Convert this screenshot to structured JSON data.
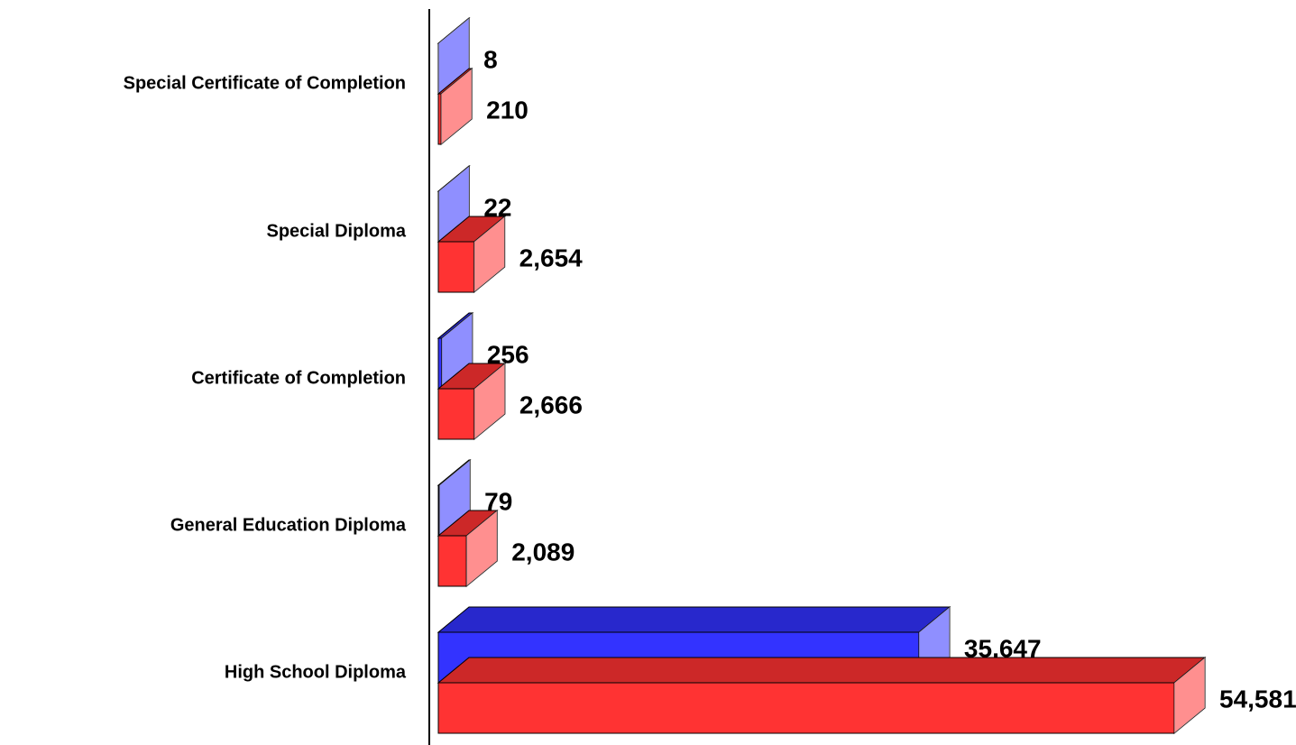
{
  "chart_data": {
    "type": "bar3d",
    "categories": [
      "Special Certificate of Completion",
      "Special Diploma",
      "Certificate of Completion",
      "General Education Diploma",
      "High School Diploma"
    ],
    "series": [
      {
        "color": "#3333ff",
        "values": [
          8,
          22,
          256,
          79,
          35647
        ],
        "value_labels": [
          "8",
          "22",
          "256",
          "79",
          "35,647"
        ]
      },
      {
        "color": "#ff3333",
        "values": [
          210,
          2654,
          2666,
          2089,
          54581
        ],
        "value_labels": [
          "210",
          "2,654",
          "2,666",
          "2,089",
          "54,581"
        ]
      }
    ]
  }
}
